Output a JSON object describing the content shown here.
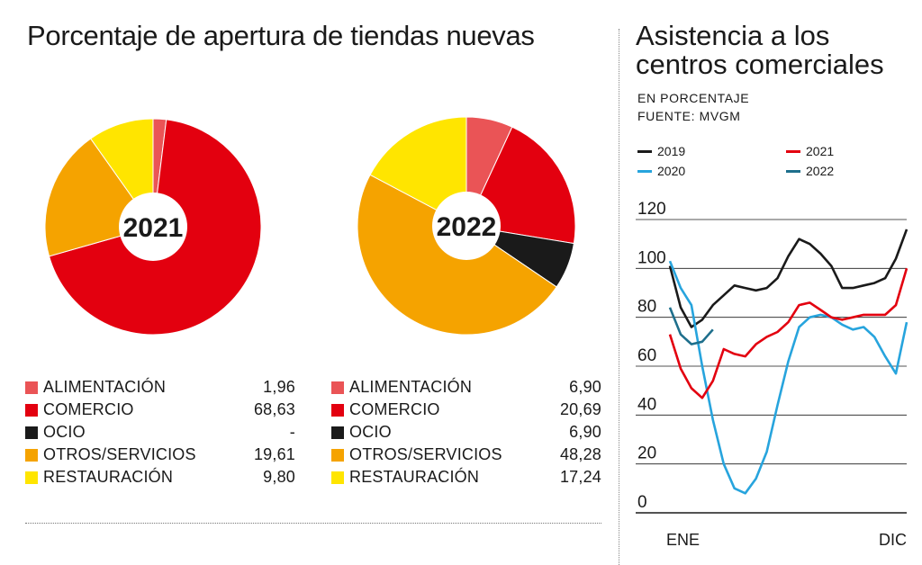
{
  "colors": {
    "alimentacion": "#ea5456",
    "comercio": "#e3000f",
    "ocio": "#1a1a1a",
    "otros": "#f5a300",
    "restauracion": "#ffe500",
    "y2019": "#1a1a1a",
    "y2020": "#27a4dd",
    "y2021": "#e3000f",
    "y2022": "#1e6f8c"
  },
  "left": {
    "title": "Porcentaje de apertura de tiendas nuevas"
  },
  "right": {
    "title": "Asistencia a los centros comerciales",
    "unit": "EN PORCENTAJE",
    "source": "FUENTE: MVGM"
  },
  "chart_data": [
    {
      "type": "pie",
      "center_label": "2021",
      "categories": [
        "ALIMENTACIÓN",
        "COMERCIO",
        "OCIO",
        "OTROS/SERVICIOS",
        "RESTAURACIÓN"
      ],
      "values": [
        1.96,
        68.63,
        0,
        19.61,
        9.8
      ],
      "value_labels": [
        "1,96",
        "68,63",
        "-",
        "19,61",
        "9,80"
      ],
      "legend": "below"
    },
    {
      "type": "pie",
      "center_label": "2022",
      "categories": [
        "ALIMENTACIÓN",
        "COMERCIO",
        "OCIO",
        "OTROS/SERVICIOS",
        "RESTAURACIÓN"
      ],
      "values": [
        6.9,
        20.69,
        6.9,
        48.28,
        17.24
      ],
      "value_labels": [
        "6,90",
        "20,69",
        "6,90",
        "48,28",
        "17,24"
      ],
      "legend": "below"
    },
    {
      "type": "line",
      "ylim": [
        0,
        120
      ],
      "yticks": [
        "0",
        "20",
        "40",
        "60",
        "80",
        "100",
        "120"
      ],
      "xticks": [
        "ENE",
        "DIC"
      ],
      "grid": true,
      "legend": "top",
      "series": [
        {
          "name": "2019",
          "x": [
            0,
            1,
            2,
            3,
            4,
            5,
            6,
            7,
            8,
            9,
            10,
            11,
            12,
            13,
            14,
            15,
            16,
            17,
            18,
            19,
            20,
            21,
            22
          ],
          "values": [
            101,
            84,
            76,
            79,
            85,
            89,
            93,
            92,
            91,
            92,
            96,
            105,
            112,
            110,
            106,
            101,
            92,
            92,
            93,
            94,
            96,
            104,
            116
          ]
        },
        {
          "name": "2020",
          "x": [
            0,
            1,
            2,
            3,
            4,
            5,
            6,
            7,
            8,
            9,
            10,
            11,
            12,
            13,
            14,
            15,
            16,
            17,
            18,
            19,
            20,
            21,
            22
          ],
          "values": [
            103,
            92,
            85,
            60,
            38,
            20,
            10,
            8,
            14,
            25,
            44,
            62,
            76,
            80,
            81,
            80,
            77,
            75,
            76,
            72,
            64,
            57,
            78
          ]
        },
        {
          "name": "2021",
          "x": [
            0,
            1,
            2,
            3,
            4,
            5,
            6,
            7,
            8,
            9,
            10,
            11,
            12,
            13,
            14,
            15,
            16,
            17,
            18,
            19,
            20,
            21,
            22
          ],
          "values": [
            73,
            59,
            51,
            47,
            54,
            67,
            65,
            64,
            69,
            72,
            74,
            78,
            85,
            86,
            83,
            80,
            79,
            80,
            81,
            81,
            81,
            85,
            100
          ]
        },
        {
          "name": "2022",
          "x": [
            0,
            1,
            2,
            3,
            4
          ],
          "values": [
            84,
            73,
            69,
            70,
            75
          ]
        }
      ]
    }
  ]
}
